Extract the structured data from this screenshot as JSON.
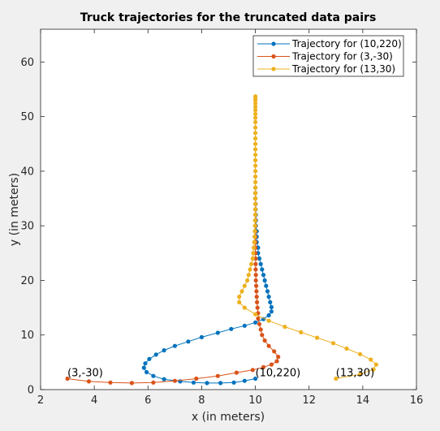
{
  "chart_data": {
    "type": "line",
    "title": "Truck trajectories for the truncated data pairs",
    "xlabel": "x (in meters)",
    "ylabel": "y (in meters)",
    "xlim": [
      2,
      16
    ],
    "ylim": [
      0,
      66
    ],
    "xticks": [
      2,
      4,
      6,
      8,
      10,
      12,
      14,
      16
    ],
    "yticks": [
      0,
      10,
      20,
      30,
      40,
      50,
      60
    ],
    "grid": false,
    "legend_position": "top-right",
    "series": [
      {
        "name": "Trajectory for (10,220)",
        "color": "#0072BD",
        "x": [
          10.0,
          9.6,
          9.2,
          8.7,
          8.2,
          7.7,
          7.2,
          6.6,
          6.2,
          5.95,
          5.85,
          5.9,
          6.05,
          6.3,
          6.6,
          7.0,
          7.5,
          8.0,
          8.6,
          9.1,
          9.6,
          10.0,
          10.3,
          10.5,
          10.6,
          10.6,
          10.55,
          10.5,
          10.45,
          10.4,
          10.35,
          10.3,
          10.25,
          10.2,
          10.15,
          10.1,
          10.1,
          10.05,
          10.05,
          10.05,
          10.02,
          10.02,
          10.02,
          10.01,
          10.01,
          10.0,
          10.0,
          10.0
        ],
        "y": [
          2.0,
          1.6,
          1.3,
          1.2,
          1.2,
          1.3,
          1.5,
          1.9,
          2.5,
          3.2,
          4.0,
          4.8,
          5.6,
          6.4,
          7.2,
          8.0,
          8.8,
          9.6,
          10.4,
          11.1,
          11.7,
          12.3,
          12.9,
          13.6,
          14.3,
          15.1,
          16.0,
          17.0,
          18.0,
          19.0,
          20.0,
          21.0,
          22.0,
          23.0,
          24.0,
          25.0,
          26.0,
          27.0,
          28.0,
          29.0,
          30.0,
          31.0,
          32.0,
          33.0,
          34.0,
          35.0,
          36.0,
          37.0
        ]
      },
      {
        "name": "Trajectory for (3,-30)",
        "color": "#D95319",
        "x": [
          3.0,
          3.8,
          4.6,
          5.4,
          6.2,
          7.0,
          7.8,
          8.6,
          9.3,
          9.9,
          10.3,
          10.6,
          10.8,
          10.85,
          10.7,
          10.5,
          10.35,
          10.25,
          10.2,
          10.15,
          10.1,
          10.1,
          10.08,
          10.06,
          10.05,
          10.04,
          10.03,
          10.02,
          10.02,
          10.01,
          10.01,
          10.01,
          10.0,
          10.0,
          10.0,
          10.0,
          10.0,
          10.0,
          10.0,
          10.0,
          10.0,
          10.0,
          10.0,
          10.0
        ],
        "y": [
          2.0,
          1.5,
          1.3,
          1.2,
          1.3,
          1.6,
          2.0,
          2.5,
          3.1,
          3.6,
          4.1,
          4.6,
          5.2,
          6.0,
          7.0,
          8.0,
          9.0,
          10.0,
          11.0,
          12.0,
          13.0,
          14.0,
          15.0,
          16.0,
          17.0,
          18.0,
          19.0,
          20.0,
          21.0,
          22.0,
          23.0,
          24.0,
          25.0,
          26.0,
          27.0,
          28.0,
          29.0,
          30.0,
          31.0,
          32.0,
          33.0,
          34.0,
          35.0,
          36.0
        ]
      },
      {
        "name": "Trajectory for (13,30)",
        "color": "#EDB120",
        "x": [
          13.0,
          13.9,
          14.4,
          14.5,
          14.3,
          13.9,
          13.4,
          12.9,
          12.3,
          11.7,
          11.1,
          10.5,
          10.0,
          9.6,
          9.4,
          9.4,
          9.5,
          9.6,
          9.7,
          9.75,
          9.8,
          9.85,
          9.9,
          9.92,
          9.94,
          9.96,
          9.97,
          9.98,
          9.99,
          9.99,
          10.0,
          10.0,
          10.0,
          10.0,
          10.0,
          10.0,
          10.0,
          10.0,
          10.0,
          10.0,
          10.0,
          10.0,
          10.0,
          10.0,
          10.0,
          10.0,
          10.0,
          10.0,
          10.0,
          10.0,
          10.0,
          10.0,
          10.0,
          10.0,
          10.0,
          10.0
        ],
        "y": [
          2.0,
          2.8,
          3.7,
          4.6,
          5.5,
          6.5,
          7.5,
          8.5,
          9.5,
          10.5,
          11.5,
          12.6,
          13.8,
          15.0,
          16.0,
          17.0,
          18.0,
          19.0,
          20.0,
          21.0,
          22.0,
          23.0,
          24.0,
          25.0,
          26.0,
          27.0,
          28.0,
          29.0,
          30.0,
          31.0,
          32.0,
          33.0,
          34.0,
          35.0,
          36.0,
          37.0,
          38.0,
          39.0,
          40.0,
          41.0,
          42.0,
          43.0,
          44.0,
          45.0,
          46.0,
          47.0,
          48.0,
          49.0,
          49.8,
          50.5,
          51.2,
          51.8,
          52.4,
          53.0,
          53.4,
          53.7
        ]
      }
    ],
    "annotations": [
      {
        "text": "(3,-30)",
        "x": 3.0,
        "y": 2.0
      },
      {
        "text": "(10,220)",
        "x": 10.0,
        "y": 2.0
      },
      {
        "text": "(13,30)",
        "x": 13.0,
        "y": 2.0
      }
    ]
  }
}
